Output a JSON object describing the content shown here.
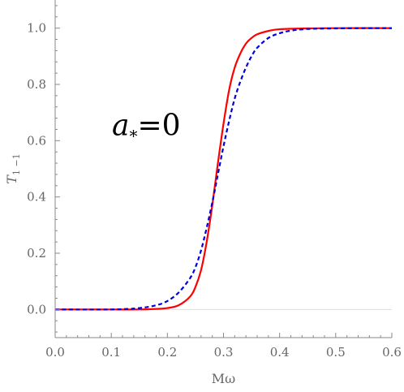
{
  "chart_data": {
    "type": "line",
    "title": "",
    "xlabel": "Mω",
    "ylabel_main": "T",
    "ylabel_sub": "1 −1",
    "xlim": [
      0.0,
      0.6
    ],
    "ylim": [
      -0.1,
      1.1
    ],
    "xticks": [
      0.0,
      0.1,
      0.2,
      0.3,
      0.4,
      0.5,
      0.6
    ],
    "xtick_labels": [
      "0.0",
      "0.1",
      "0.2",
      "0.3",
      "0.4",
      "0.5",
      "0.6"
    ],
    "yticks": [
      0.0,
      0.2,
      0.4,
      0.6,
      0.8,
      1.0
    ],
    "ytick_labels": [
      "0.0",
      "0.2",
      "0.4",
      "0.6",
      "0.8",
      "1.0"
    ],
    "grid": false,
    "legend": "none",
    "annotation": {
      "main": "a",
      "sub": "*",
      "rest": "=0"
    },
    "colors": {
      "axis": "#888888",
      "zero_line": "#dddddd",
      "solid": "#ff0000",
      "dashed": "#0000dd"
    },
    "series": [
      {
        "style": "solid",
        "x": [
          0.0,
          0.1,
          0.15,
          0.18,
          0.2,
          0.22,
          0.24,
          0.25,
          0.26,
          0.27,
          0.28,
          0.29,
          0.3,
          0.31,
          0.32,
          0.33,
          0.34,
          0.35,
          0.36,
          0.38,
          0.4,
          0.45,
          0.5,
          0.6
        ],
        "y": [
          0.0,
          0.0,
          0.0,
          0.002,
          0.005,
          0.015,
          0.045,
          0.08,
          0.14,
          0.24,
          0.37,
          0.52,
          0.66,
          0.78,
          0.86,
          0.91,
          0.945,
          0.965,
          0.978,
          0.99,
          0.996,
          0.999,
          1.0,
          1.0
        ]
      },
      {
        "style": "dashed",
        "x": [
          0.0,
          0.1,
          0.15,
          0.18,
          0.2,
          0.22,
          0.24,
          0.25,
          0.26,
          0.27,
          0.28,
          0.29,
          0.3,
          0.31,
          0.32,
          0.33,
          0.34,
          0.35,
          0.36,
          0.38,
          0.4,
          0.42,
          0.45,
          0.5,
          0.55,
          0.6
        ],
        "y": [
          0.0,
          0.0,
          0.005,
          0.015,
          0.03,
          0.06,
          0.11,
          0.15,
          0.21,
          0.29,
          0.38,
          0.48,
          0.58,
          0.67,
          0.75,
          0.81,
          0.86,
          0.9,
          0.93,
          0.965,
          0.982,
          0.991,
          0.997,
          0.999,
          1.0,
          1.0
        ]
      }
    ]
  }
}
